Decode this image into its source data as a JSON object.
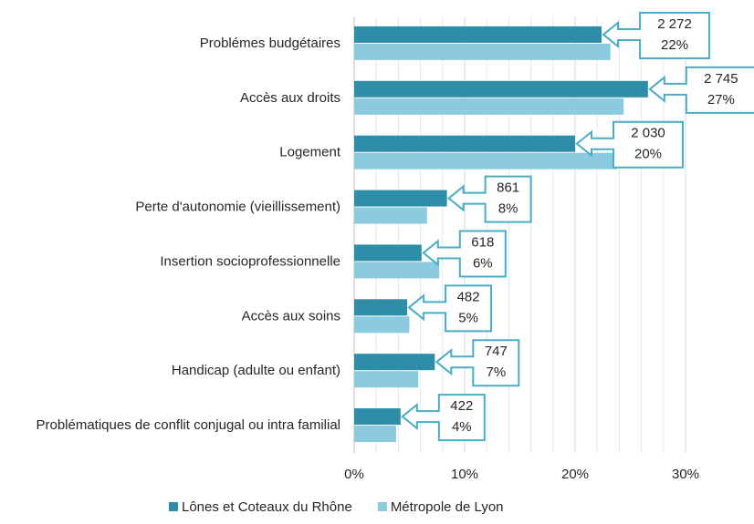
{
  "chart_data": {
    "type": "bar",
    "orientation": "horizontal",
    "categories": [
      "Problémes budgétaires",
      "Accès aux droits",
      "Logement",
      "Perte d'autonomie (vieillissement)",
      "Insertion socioprofessionnelle",
      "Accès aux soins",
      "Handicap (adulte ou enfant)",
      "Problématiques de conflit conjugal ou intra familial"
    ],
    "series": [
      {
        "name": "Lônes et Coteaux du Rhône",
        "color": "#2e8ea8",
        "values": [
          22.4,
          26.6,
          20,
          8.4,
          6.1,
          4.8,
          7.3,
          4.2
        ],
        "value_labels": [
          "22%",
          "27%",
          "20%",
          "8%",
          "6%",
          "5%",
          "7%",
          "4%"
        ],
        "counts": [
          "2 272",
          "2 745",
          "2 030",
          "861",
          "618",
          "482",
          "747",
          "422"
        ]
      },
      {
        "name": "Métropole de Lyon",
        "color": "#8ccbdf",
        "values": [
          23.2,
          24.4,
          23.8,
          6.6,
          7.7,
          5.0,
          5.8,
          3.8
        ]
      }
    ],
    "xlim": [
      0,
      30
    ],
    "xticks": [
      {
        "value": 0,
        "label": "0%"
      },
      {
        "value": 10,
        "label": "10%"
      },
      {
        "value": 20,
        "label": "20%"
      },
      {
        "value": 30,
        "label": "30%"
      }
    ],
    "x_minor_ticks": [
      2,
      4,
      6,
      8,
      12,
      14,
      16,
      18,
      22,
      24,
      26,
      28
    ],
    "grid": true,
    "legend": "bottom",
    "callout_color": "#4bacc6"
  }
}
